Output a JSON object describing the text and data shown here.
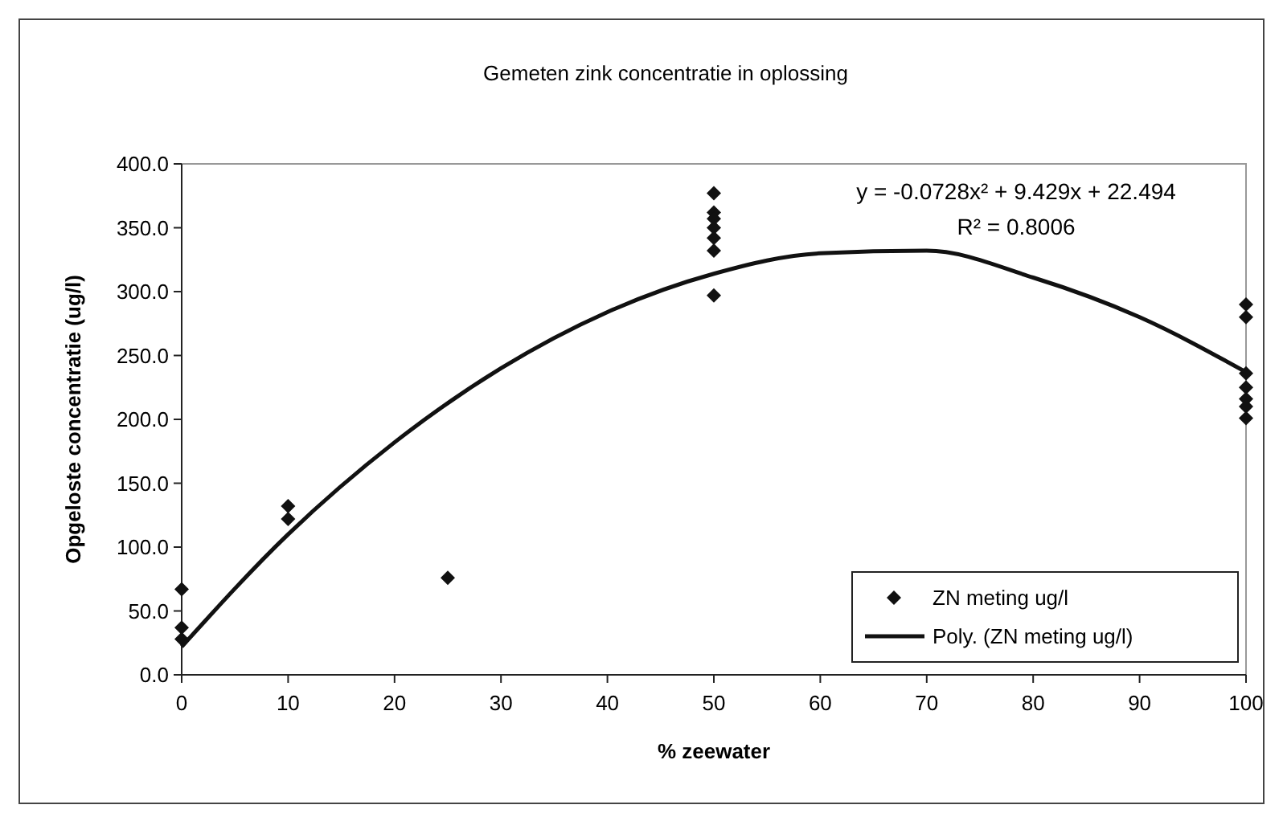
{
  "chart_data": {
    "type": "scatter",
    "title": "Gemeten zink concentratie in oplossing",
    "xlabel": "% zeewater",
    "ylabel": "Opgeloste concentratie (ug/l)",
    "xlim": [
      0,
      100
    ],
    "xticks": [
      0,
      10,
      20,
      30,
      40,
      50,
      60,
      70,
      80,
      90,
      100
    ],
    "ylim": [
      0,
      400
    ],
    "yticks": [
      {
        "value": 0,
        "label": "0.0"
      },
      {
        "value": 50,
        "label": "50.0"
      },
      {
        "value": 100,
        "label": "100.0"
      },
      {
        "value": 150,
        "label": "150.0"
      },
      {
        "value": 200,
        "label": "200.0"
      },
      {
        "value": 250,
        "label": "250.0"
      },
      {
        "value": 300,
        "label": "300.0"
      },
      {
        "value": 350,
        "label": "350.0"
      },
      {
        "value": 400,
        "label": "400.0"
      }
    ],
    "grid": false,
    "legend": "bottom right",
    "series": [
      {
        "name": "ZN meting ug/l",
        "marker": "diamond",
        "color": "#111111",
        "x": [
          0,
          0,
          0,
          10,
          10,
          25,
          50,
          50,
          50,
          50,
          50,
          50,
          50,
          100,
          100,
          100,
          100,
          100,
          100,
          100
        ],
        "values": [
          67,
          37,
          28,
          132,
          122,
          76,
          377,
          362,
          357,
          350,
          342,
          332,
          297,
          290,
          280,
          236,
          225,
          216,
          210,
          201
        ]
      },
      {
        "name": "Poly. (ZN meting ug/l)",
        "type": "line",
        "color": "#111111",
        "line_style": "solid",
        "marker": "none",
        "x": [
          0,
          10,
          20,
          30,
          40,
          50,
          60,
          70,
          80,
          90,
          100
        ],
        "values": [
          22,
          110,
          182,
          240,
          284,
          314,
          330,
          332,
          311,
          280,
          237
        ]
      }
    ],
    "annotations": [
      "y = -0.0728x² + 9.429x + 22.494",
      "R² = 0.8006"
    ]
  }
}
